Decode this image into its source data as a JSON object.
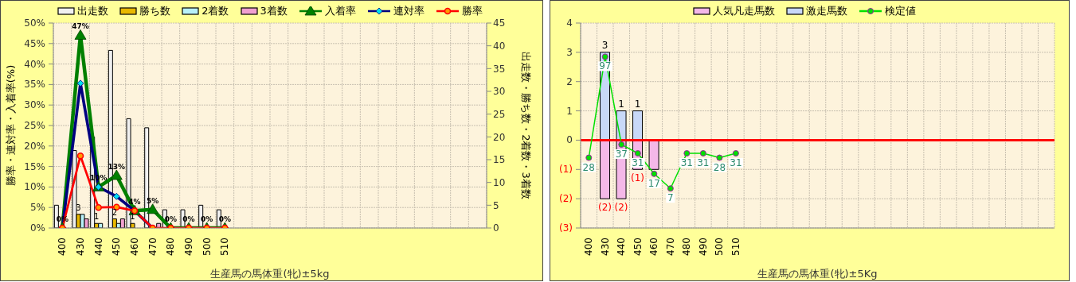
{
  "chart_data": [
    {
      "type": "bar",
      "xlabel": "生産馬の馬体重(牝)±5kg",
      "ylabel": "勝率・連対率・入着率(%)",
      "y2label": "出走数・勝ち数・2着数・3着数",
      "categories": [
        "400",
        "430",
        "440",
        "450",
        "460",
        "470",
        "480",
        "490",
        "500",
        "510",
        null,
        null,
        null,
        null,
        null,
        null,
        null,
        null,
        null,
        null,
        null,
        null,
        null,
        null
      ],
      "series": [
        {
          "name": "出走数",
          "color": "#f0f0f0",
          "axis": "y2",
          "values": [
            5,
            17,
            20,
            39,
            24,
            22,
            4,
            4,
            5,
            4,
            null,
            null,
            null,
            null,
            null,
            null,
            null,
            null,
            null,
            null,
            null,
            null,
            null,
            null
          ]
        },
        {
          "name": "勝ち数",
          "color": "#e8b800",
          "axis": "y2",
          "values": [
            0,
            3,
            1,
            2,
            1,
            0,
            0,
            0,
            0,
            0,
            null,
            null,
            null,
            null,
            null,
            null,
            null,
            null,
            null,
            null,
            null,
            null,
            null,
            null
          ],
          "value_labels": [
            null,
            "3",
            "1",
            "2",
            "1",
            null,
            null,
            null,
            null,
            null,
            null,
            null,
            null,
            null,
            null,
            null,
            null,
            null,
            null,
            null,
            null,
            null,
            null,
            null
          ]
        },
        {
          "name": "2着数",
          "color": "#b8f0f8",
          "axis": "y2",
          "values": [
            0,
            3,
            1,
            1,
            0,
            0,
            0,
            0,
            0,
            0,
            null,
            null,
            null,
            null,
            null,
            null,
            null,
            null,
            null,
            null,
            null,
            null,
            null,
            null
          ]
        },
        {
          "name": "3着数",
          "color": "#f0a0d0",
          "axis": "y2",
          "values": [
            0,
            2,
            0,
            2,
            0,
            1,
            0,
            0,
            0,
            0,
            null,
            null,
            null,
            null,
            null,
            null,
            null,
            null,
            null,
            null,
            null,
            null,
            null,
            null
          ]
        },
        {
          "name": "入着率",
          "type": "line",
          "color": "#008000",
          "marker": "triangle",
          "values": [
            0,
            47,
            10,
            12.8,
            4.2,
            4.5,
            0,
            0,
            0,
            0,
            null,
            null,
            null,
            null,
            null,
            null,
            null,
            null,
            null,
            null,
            null,
            null,
            null,
            null
          ],
          "value_labels": [
            "0%",
            "47%",
            "10%",
            "13%",
            "4%",
            "5%",
            "0%",
            "0%",
            "0%",
            "0%",
            null,
            null,
            null,
            null,
            null,
            null,
            null,
            null,
            null,
            null,
            null,
            null,
            null,
            null
          ]
        },
        {
          "name": "連対率",
          "type": "line",
          "color": "#000080",
          "marker": "diamond",
          "values": [
            0,
            35.3,
            10,
            7.7,
            4.2,
            0,
            null,
            null,
            null,
            null,
            null,
            null,
            null,
            null,
            null,
            null,
            null,
            null,
            null,
            null,
            null,
            null,
            null,
            null
          ]
        },
        {
          "name": "勝率",
          "type": "line",
          "color": "#ff0000",
          "marker": "circle",
          "values": [
            0,
            17.6,
            5,
            5.1,
            4.2,
            0,
            0,
            0,
            0,
            0,
            null,
            null,
            null,
            null,
            null,
            null,
            null,
            null,
            null,
            null,
            null,
            null,
            null,
            null
          ]
        }
      ],
      "ylim": [
        0,
        50
      ],
      "yticks": [
        {
          "value": 0,
          "label": "0%"
        },
        {
          "value": 5,
          "label": "5%"
        },
        {
          "value": 10,
          "label": "10%"
        },
        {
          "value": 15,
          "label": "15%"
        },
        {
          "value": 20,
          "label": "20%"
        },
        {
          "value": 25,
          "label": "25%"
        },
        {
          "value": 30,
          "label": "30%"
        },
        {
          "value": 35,
          "label": "35%"
        },
        {
          "value": 40,
          "label": "40%"
        },
        {
          "value": 45,
          "label": "45%"
        },
        {
          "value": 50,
          "label": "50%"
        }
      ],
      "y2lim": [
        0,
        45
      ],
      "y2ticks": [
        0,
        5,
        10,
        15,
        20,
        25,
        30,
        35,
        40,
        45
      ],
      "grid": true,
      "legend": "top"
    },
    {
      "type": "bar",
      "xlabel": "生産馬の馬体重(牝)±5Kg",
      "stacked": true,
      "categories": [
        "400",
        "430",
        "440",
        "450",
        "460",
        "470",
        "480",
        "490",
        "500",
        "510",
        null,
        null,
        null,
        null,
        null,
        null,
        null,
        null,
        null,
        null,
        null,
        null,
        null,
        null,
        null,
        null,
        null,
        null,
        null
      ],
      "series": [
        {
          "name": "人気凡走馬数",
          "color": "#f4b8e8",
          "values": [
            null,
            -2,
            -2,
            -1,
            -1,
            null,
            null,
            null,
            null,
            null,
            null,
            null,
            null,
            null,
            null,
            null,
            null,
            null,
            null,
            null,
            null,
            null,
            null,
            null,
            null,
            null,
            null,
            null,
            null
          ],
          "value_labels": [
            null,
            "(2)",
            "(2)",
            "(1)",
            null,
            null,
            null,
            null,
            null,
            null,
            null,
            null,
            null,
            null,
            null,
            null,
            null,
            null,
            null,
            null,
            null,
            null,
            null,
            null,
            null,
            null,
            null,
            null,
            null
          ]
        },
        {
          "name": "激走馬数",
          "color": "#c8d8f8",
          "values": [
            null,
            3,
            1,
            1,
            null,
            null,
            null,
            null,
            null,
            null,
            null,
            null,
            null,
            null,
            null,
            null,
            null,
            null,
            null,
            null,
            null,
            null,
            null,
            null,
            null,
            null,
            null,
            null,
            null
          ],
          "value_labels": [
            null,
            "3",
            "1",
            "1",
            null,
            null,
            null,
            null,
            null,
            null,
            null,
            null,
            null,
            null,
            null,
            null,
            null,
            null,
            null,
            null,
            null,
            null,
            null,
            null,
            null,
            null,
            null,
            null,
            null
          ]
        },
        {
          "name": "検定値",
          "type": "line",
          "color": "#00e000",
          "marker": "circle",
          "axis": "y2",
          "values": [
            28,
            97,
            37,
            31,
            17,
            7,
            31,
            31,
            28,
            31,
            null,
            null,
            null,
            null,
            null,
            null,
            null,
            null,
            null,
            null,
            null,
            null,
            null,
            null,
            null,
            null,
            null,
            null,
            null
          ],
          "value_labels": [
            "28",
            "97",
            "37",
            "31",
            "17",
            "7",
            "31",
            "31",
            "28",
            "31",
            null,
            null,
            null,
            null,
            null,
            null,
            null,
            null,
            null,
            null,
            null,
            null,
            null,
            null,
            null,
            null,
            null,
            null,
            null
          ]
        }
      ],
      "ylim": [
        -3,
        4
      ],
      "yticks": [
        {
          "value": -3,
          "label": "(3)"
        },
        {
          "value": -2,
          "label": "(2)"
        },
        {
          "value": -1,
          "label": "(1)"
        },
        0,
        1,
        2,
        3,
        4
      ],
      "y2lim": [
        -20,
        120
      ],
      "tick_labels": "xy",
      "ref_lines": [
        {
          "axis": "y",
          "value": 0,
          "color": "#ff0000"
        }
      ],
      "grid": true,
      "legend": "top"
    }
  ]
}
